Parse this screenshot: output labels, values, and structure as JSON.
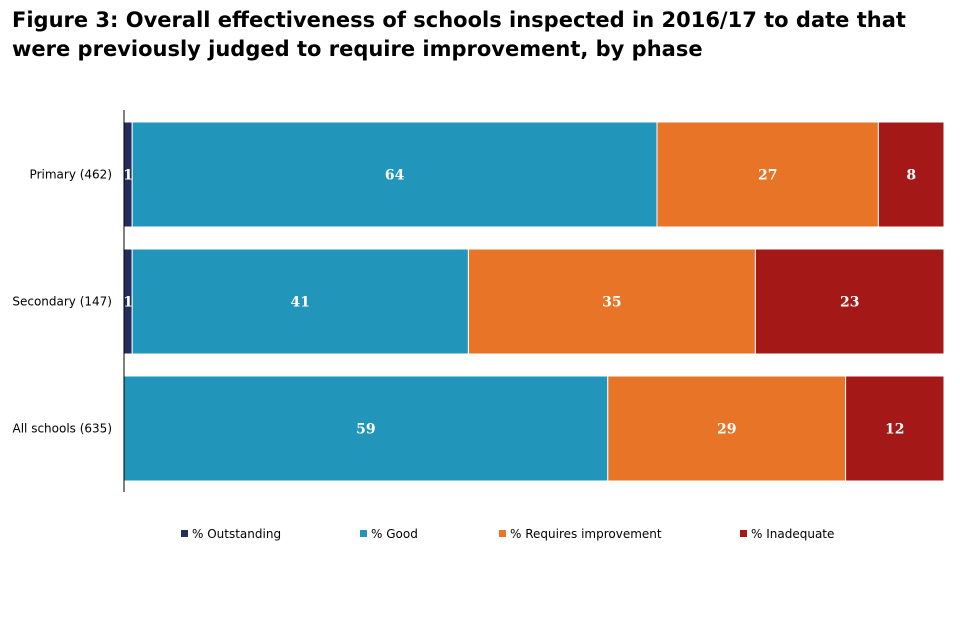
{
  "chart_data": {
    "type": "bar",
    "orientation": "horizontal",
    "stacked": true,
    "title": "Figure 3: Overall effectiveness of schools inspected in 2016/17 to date that were previously judged to require improvement, by phase",
    "title_lines": [
      "Figure 3: Overall effectiveness of schools inspected in 2016/17 to date that",
      "were previously judged to require improvement, by phase"
    ],
    "categories": [
      "Primary (462)",
      "Secondary (147)",
      "All schools (635)"
    ],
    "xlim": [
      0,
      100
    ],
    "series": [
      {
        "name": "% Outstanding",
        "color": "#252c5e",
        "values": [
          1,
          1,
          0
        ]
      },
      {
        "name": "% Good",
        "color": "#2196ba",
        "values": [
          64,
          41,
          59
        ]
      },
      {
        "name": "% Requires improvement",
        "color": "#e87428",
        "values": [
          27,
          35,
          29
        ]
      },
      {
        "name": "% Inadequate",
        "color": "#a51818",
        "values": [
          8,
          23,
          12
        ]
      }
    ],
    "legend_position": "bottom",
    "grid": false
  }
}
